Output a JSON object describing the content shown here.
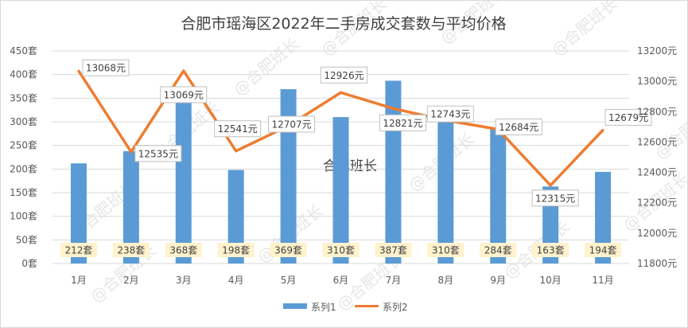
{
  "chart_data": {
    "type": "bar",
    "title": "合肥市瑶海区2022年二手房成交套数与平均价格",
    "categories": [
      "1月",
      "2月",
      "3月",
      "4月",
      "5月",
      "6月",
      "7月",
      "8月",
      "9月",
      "10月",
      "11月"
    ],
    "series": [
      {
        "name": "系列1",
        "type": "bar",
        "axis": "left",
        "color": "#5b9bd5",
        "values": [
          212,
          238,
          368,
          198,
          369,
          310,
          387,
          310,
          284,
          163,
          194
        ],
        "labels": [
          "212套",
          "238套",
          "368套",
          "198套",
          "369套",
          "310套",
          "387套",
          "310套",
          "284套",
          "163套",
          "194套"
        ]
      },
      {
        "name": "系列2",
        "type": "line",
        "axis": "right",
        "color": "#ed7d31",
        "values": [
          13068,
          12535,
          13069,
          12541,
          12707,
          12926,
          12821,
          12743,
          12684,
          12315,
          12679
        ],
        "labels": [
          "13068元",
          "12535元",
          "13069元",
          "12541元",
          "12707元",
          "12926元",
          "12821元",
          "12743元",
          "12684元",
          "12315元",
          "12679元"
        ]
      }
    ],
    "y_left": {
      "ylim": [
        0,
        450
      ],
      "ticks": [
        0,
        50,
        100,
        150,
        200,
        250,
        300,
        350,
        400,
        450
      ],
      "tick_labels": [
        "0套",
        "50套",
        "100套",
        "150套",
        "200套",
        "250套",
        "300套",
        "350套",
        "400套",
        "450套"
      ]
    },
    "y_right": {
      "ylim": [
        11800,
        13200
      ],
      "ticks": [
        11800,
        12000,
        12200,
        12400,
        12600,
        12800,
        13000,
        13200
      ],
      "tick_labels": [
        "11800元",
        "12000元",
        "12200元",
        "12400元",
        "12600元",
        "12800元",
        "13000元",
        "13200元"
      ]
    },
    "grid": true,
    "legend_position": "bottom",
    "bar_label_style": {
      "background": "#fff2cc"
    },
    "line_label_style": {
      "background": "#ffffff",
      "border": "#bfbfbf"
    },
    "gridline_color": "#d9d9d9"
  },
  "watermark": {
    "text": "@合肥班长",
    "center_text": "合肥班长"
  }
}
